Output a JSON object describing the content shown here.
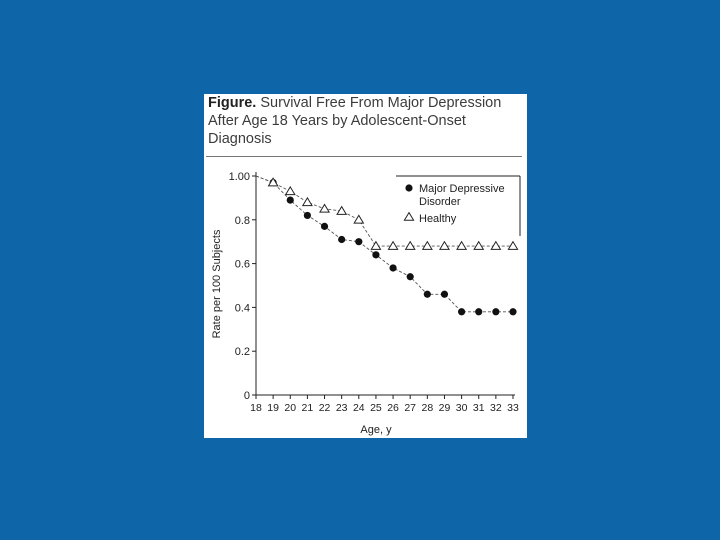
{
  "figure": {
    "title_lead": "Figure.",
    "title_text": "Survival Free From Major Depression After Age 18 Years by Adolescent-Onset Diagnosis"
  },
  "chart_data": {
    "type": "line",
    "title": "Survival Free From Major Depression After Age 18 Years by Adolescent-Onset Diagnosis",
    "xlabel": "Age, y",
    "ylabel": "Rate per 100 Subjects",
    "xlim": [
      18,
      33
    ],
    "ylim": [
      0,
      1.0
    ],
    "x_ticks": [
      18,
      19,
      20,
      21,
      22,
      23,
      24,
      25,
      26,
      27,
      28,
      29,
      30,
      31,
      32,
      33
    ],
    "y_ticks": [
      {
        "value": 0,
        "label": "0"
      },
      {
        "value": 0.2,
        "label": "0.2"
      },
      {
        "value": 0.4,
        "label": "0.4"
      },
      {
        "value": 0.6,
        "label": "0.6"
      },
      {
        "value": 0.8,
        "label": "0.8"
      },
      {
        "value": 1.0,
        "label": "1.00"
      }
    ],
    "grid": false,
    "legend_position": "top-right",
    "series": [
      {
        "name": "Major Depressive Disorder",
        "marker": "filled-circle",
        "x": [
          18,
          19,
          20,
          21,
          22,
          23,
          24,
          25,
          26,
          27,
          28,
          29,
          30,
          31,
          32,
          33
        ],
        "y": [
          1.0,
          0.97,
          0.89,
          0.82,
          0.77,
          0.71,
          0.7,
          0.64,
          0.58,
          0.54,
          0.46,
          0.46,
          0.38,
          0.38,
          0.38,
          0.38
        ]
      },
      {
        "name": "Healthy",
        "marker": "open-triangle",
        "x": [
          18,
          19,
          20,
          21,
          22,
          23,
          24,
          25,
          26,
          27,
          28,
          29,
          30,
          31,
          32,
          33
        ],
        "y": [
          1.0,
          0.97,
          0.93,
          0.88,
          0.85,
          0.84,
          0.8,
          0.68,
          0.68,
          0.68,
          0.68,
          0.68,
          0.68,
          0.68,
          0.68,
          0.68
        ]
      }
    ]
  },
  "colors": {
    "background": "#0e66a9",
    "card": "#ffffff",
    "ink": "#222222"
  }
}
